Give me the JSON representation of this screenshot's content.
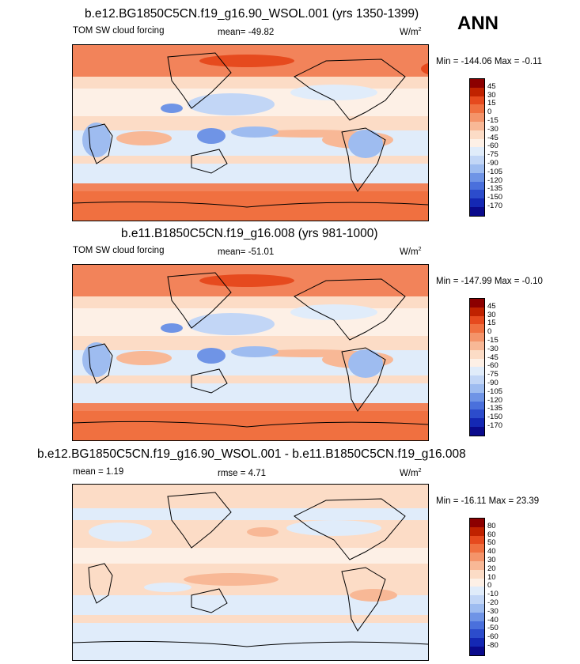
{
  "season": "ANN",
  "panels": [
    {
      "title": "b.e12.BG1850C5CN.f19_g16.90_WSOL.001 (yrs 1350-1399)",
      "left_label": "TOM SW cloud forcing",
      "mid_label": "mean= -49.82",
      "units_base": "W/m",
      "units_exp": "2",
      "minmax": "Min = -144.06 Max =  -0.11",
      "levels": [
        "45",
        "30",
        "15",
        "0",
        "-15",
        "-30",
        "-45",
        "-60",
        "-75",
        "-90",
        "-105",
        "-120",
        "-135",
        "-150",
        "-170"
      ],
      "colors": [
        "#8c0000",
        "#c02200",
        "#e64a1e",
        "#f07040",
        "#f4946a",
        "#f8b896",
        "#fcdcc6",
        "#fdf0e6",
        "#e0ecfa",
        "#c2d6f6",
        "#9ebcf0",
        "#6f94e6",
        "#4a70dc",
        "#2c4ccc",
        "#1428b4",
        "#0a0a8c"
      ]
    },
    {
      "title": "b.e11.B1850C5CN.f19_g16.008 (yrs 981-1000)",
      "left_label": "TOM SW cloud forcing",
      "mid_label": "mean= -51.01",
      "units_base": "W/m",
      "units_exp": "2",
      "minmax": "Min = -147.99 Max =  -0.10",
      "levels": [
        "45",
        "30",
        "15",
        "0",
        "-15",
        "-30",
        "-45",
        "-60",
        "-75",
        "-90",
        "-105",
        "-120",
        "-135",
        "-150",
        "-170"
      ],
      "colors": [
        "#8c0000",
        "#c02200",
        "#e64a1e",
        "#f07040",
        "#f4946a",
        "#f8b896",
        "#fcdcc6",
        "#fdf0e6",
        "#e0ecfa",
        "#c2d6f6",
        "#9ebcf0",
        "#6f94e6",
        "#4a70dc",
        "#2c4ccc",
        "#1428b4",
        "#0a0a8c"
      ]
    },
    {
      "title": "b.e12.BG1850C5CN.f19_g16.90_WSOL.001 - b.e11.B1850C5CN.f19_g16.008",
      "left_label": "mean =   1.19",
      "mid_label": "rmse =   4.71",
      "units_base": "W/m",
      "units_exp": "2",
      "minmax": "Min = -16.11 Max =  23.39",
      "levels": [
        "80",
        "60",
        "50",
        "40",
        "30",
        "20",
        "10",
        "0",
        "-10",
        "-20",
        "-30",
        "-40",
        "-50",
        "-60",
        "-80"
      ],
      "colors": [
        "#8c0000",
        "#c02200",
        "#e64a1e",
        "#f07040",
        "#f4946a",
        "#f8b896",
        "#fcdcc6",
        "#fdf0e6",
        "#e0ecfa",
        "#c2d6f6",
        "#9ebcf0",
        "#6f94e6",
        "#4a70dc",
        "#2c4ccc",
        "#1428b4",
        "#0a0a8c"
      ]
    }
  ],
  "chart_data": [
    {
      "type": "heatmap",
      "title": "b.e12.BG1850C5CN.f19_g16.90_WSOL.001 (yrs 1350-1399)",
      "variable": "TOM SW cloud forcing",
      "mean": -49.82,
      "min": -144.06,
      "max": -0.11,
      "units": "W/m2",
      "contour_levels": [
        45,
        30,
        15,
        0,
        -15,
        -30,
        -45,
        -60,
        -75,
        -90,
        -105,
        -120,
        -135,
        -150,
        -170
      ]
    },
    {
      "type": "heatmap",
      "title": "b.e11.B1850C5CN.f19_g16.008 (yrs 981-1000)",
      "variable": "TOM SW cloud forcing",
      "mean": -51.01,
      "min": -147.99,
      "max": -0.1,
      "units": "W/m2",
      "contour_levels": [
        45,
        30,
        15,
        0,
        -15,
        -30,
        -45,
        -60,
        -75,
        -90,
        -105,
        -120,
        -135,
        -150,
        -170
      ]
    },
    {
      "type": "heatmap",
      "title": "b.e12.BG1850C5CN.f19_g16.90_WSOL.001 - b.e11.B1850C5CN.f19_g16.008",
      "mean": 1.19,
      "rmse": 4.71,
      "min": -16.11,
      "max": 23.39,
      "units": "W/m2",
      "contour_levels": [
        80,
        60,
        50,
        40,
        30,
        20,
        10,
        0,
        -10,
        -20,
        -30,
        -40,
        -50,
        -60,
        -80
      ]
    }
  ]
}
